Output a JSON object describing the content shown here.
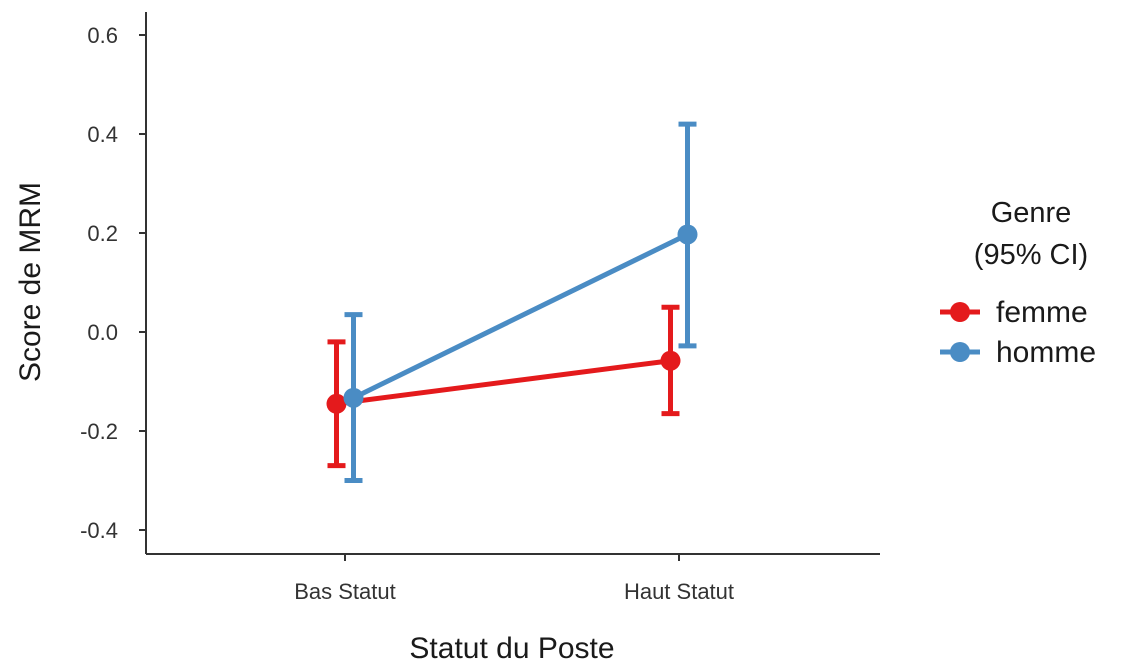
{
  "chart_data": {
    "type": "line",
    "categories": [
      "Bas Statut",
      "Haut Statut"
    ],
    "xlabel": "Statut du Poste",
    "ylabel": "Score de MRM",
    "ylim": [
      -0.45,
      0.65
    ],
    "yticks": [
      -0.4,
      -0.2,
      0.0,
      0.2,
      0.4,
      0.6
    ],
    "ytick_labels": [
      "-0.4",
      "-0.2",
      "0.0",
      "0.2",
      "0.4",
      "0.6"
    ],
    "grid": false,
    "legend": {
      "title_line1": "Genre",
      "title_line2": "(95% CI)",
      "placement": "right"
    },
    "series": [
      {
        "name": "femme",
        "color": "#e41a1c",
        "values": [
          -0.145,
          -0.058
        ],
        "ci_low": [
          -0.27,
          -0.165
        ],
        "ci_high": [
          -0.02,
          0.05
        ]
      },
      {
        "name": "homme",
        "color": "#4a8cc4",
        "values": [
          -0.133,
          0.197
        ],
        "ci_low": [
          -0.3,
          -0.028
        ],
        "ci_high": [
          0.035,
          0.42
        ]
      }
    ]
  }
}
